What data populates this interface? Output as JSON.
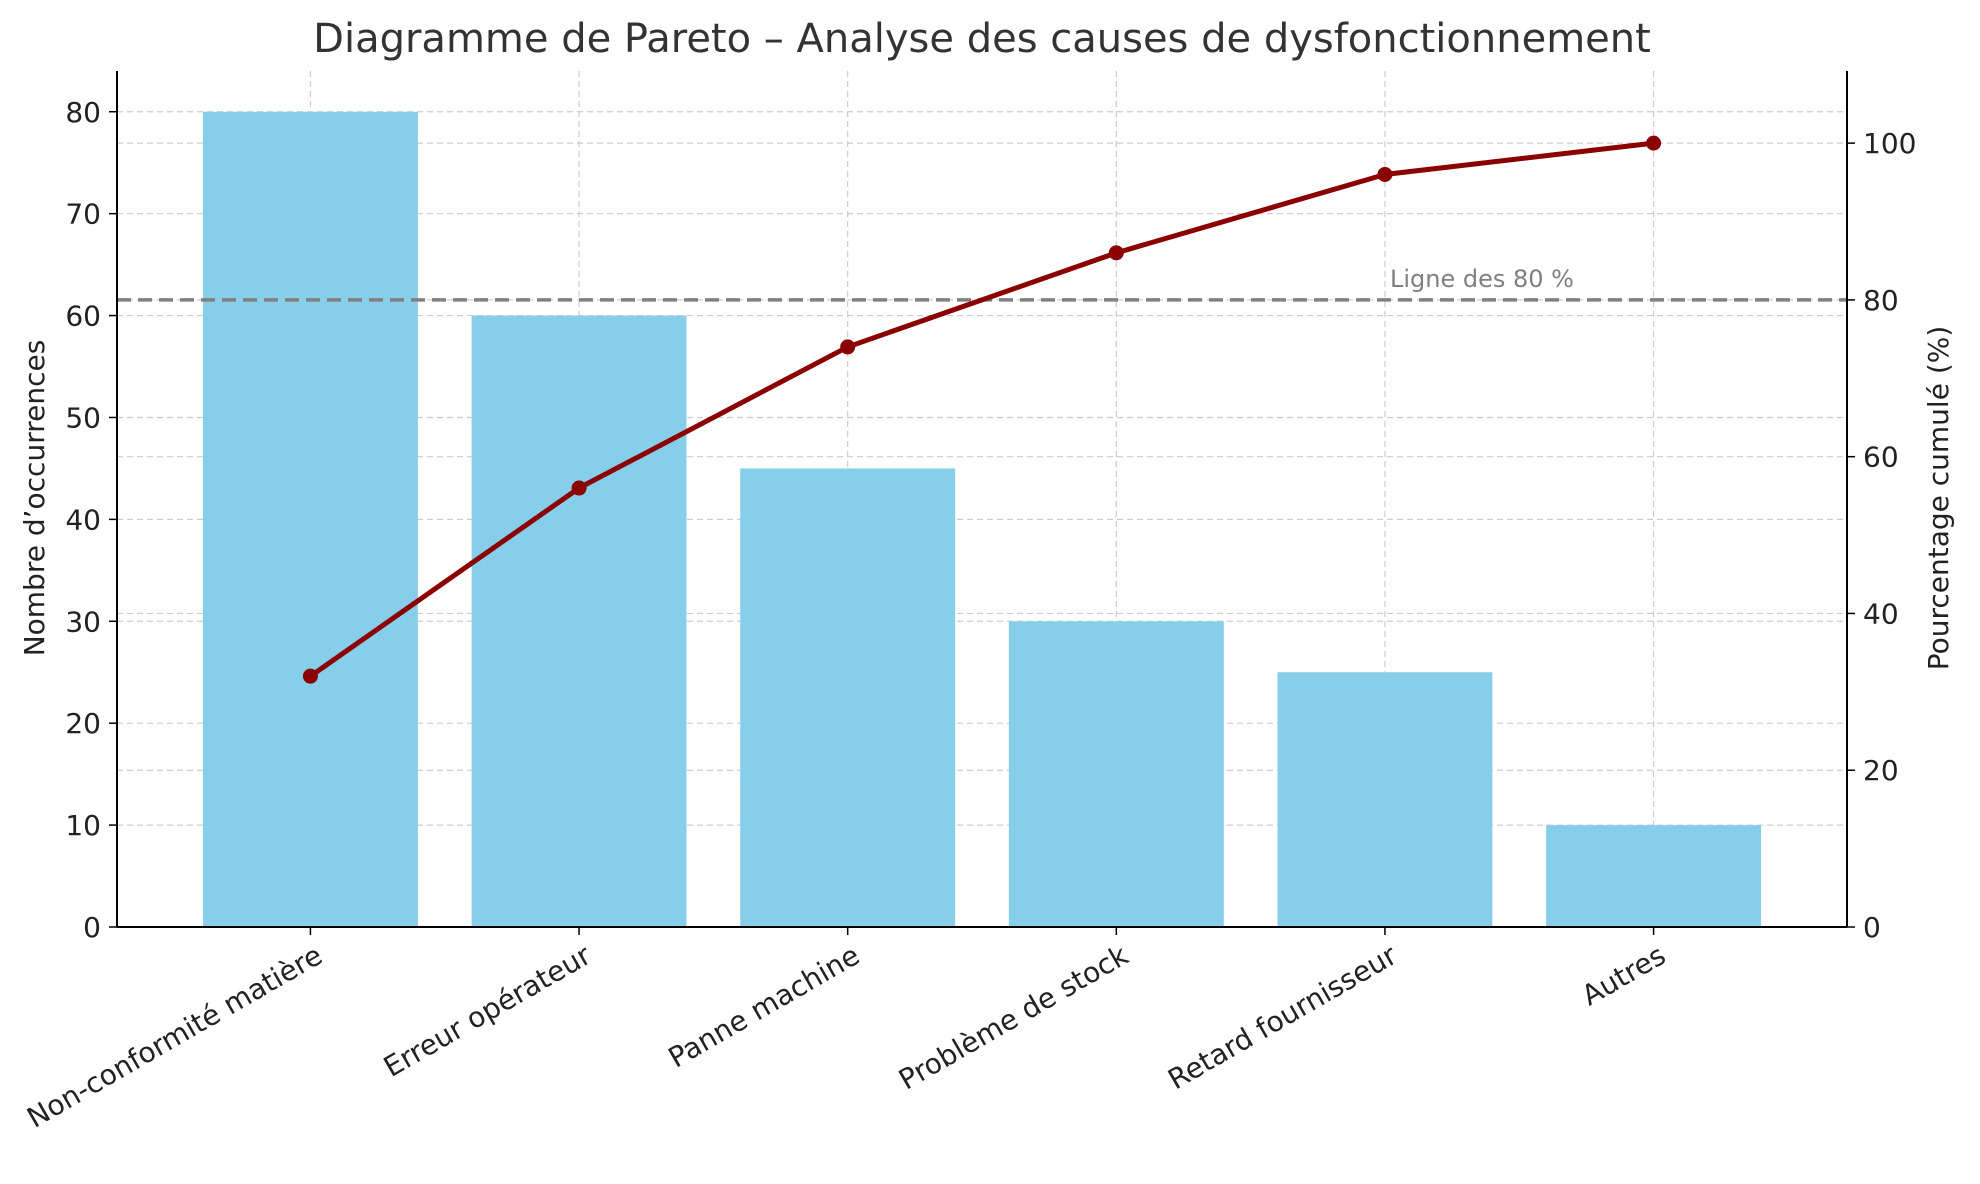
{
  "chart_data": {
    "type": "bar",
    "title": "Diagramme de Pareto – Analyse des causes de dysfonctionnement",
    "xlabel": "",
    "ylabel": "Nombre d’occurrences",
    "y2label": "Pourcentage cumulé (%)",
    "categories": [
      "Non-conformité matière",
      "Erreur opérateur",
      "Panne machine",
      "Problème de stock",
      "Retard fournisseur",
      "Autres"
    ],
    "series": [
      {
        "type": "bar",
        "values": [
          80,
          60,
          45,
          30,
          25,
          10
        ],
        "color": "#87CEEB",
        "axis": "left"
      },
      {
        "type": "line",
        "values": [
          32,
          56,
          74,
          86,
          96,
          100
        ],
        "color": "#8B0000",
        "axis": "right",
        "marker": "circle"
      }
    ],
    "ylim": [
      0,
      84
    ],
    "y2lim": [
      0,
      109.2
    ],
    "yticks": [
      0,
      10,
      20,
      30,
      40,
      50,
      60,
      70,
      80
    ],
    "y2ticks": [
      0,
      20,
      40,
      60,
      80,
      100
    ],
    "reference_line": {
      "value": 80,
      "axis": "right",
      "label": "Ligne des 80 %",
      "color": "#808080",
      "style": "dashed"
    },
    "grid": true,
    "legend": "none"
  }
}
